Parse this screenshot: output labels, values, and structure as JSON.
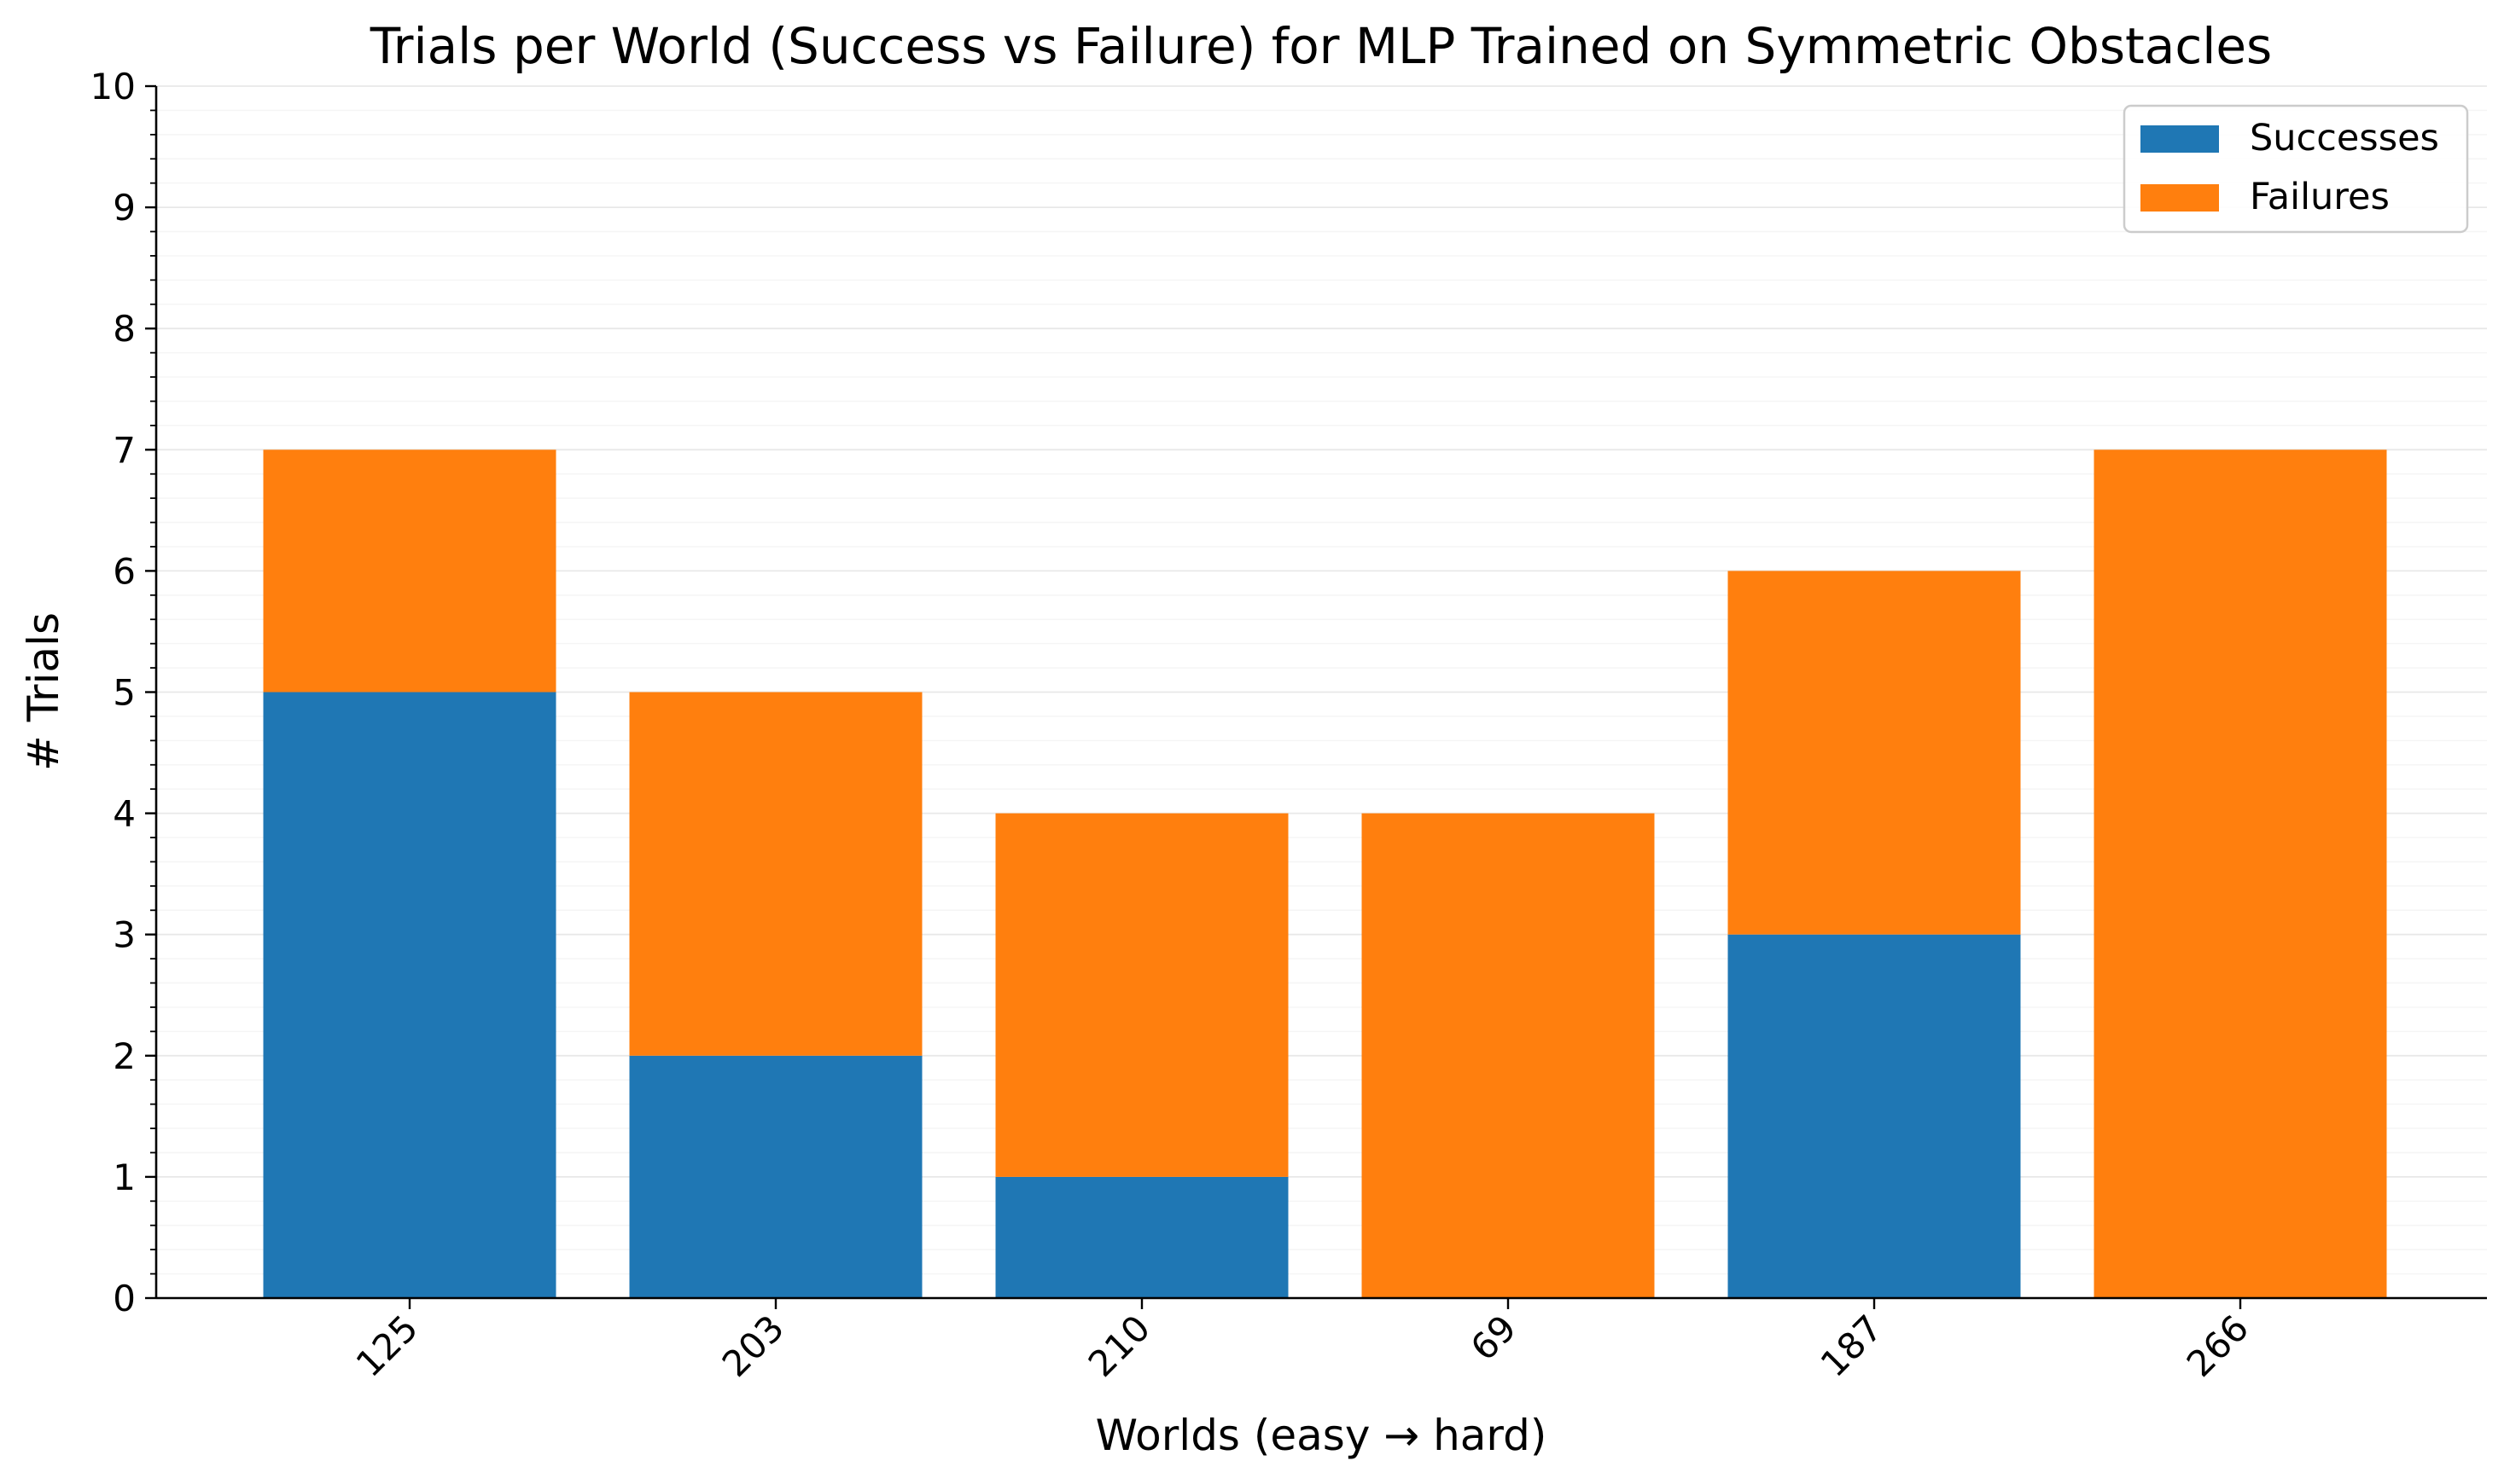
{
  "chart_data": {
    "type": "bar",
    "stacked": true,
    "title": "Trials per World (Success vs Failure) for MLP Trained on Symmetric Obstacles",
    "xlabel": "Worlds (easy → hard)",
    "ylabel": "# Trials",
    "categories": [
      "125",
      "203",
      "210",
      "69",
      "187",
      "266"
    ],
    "series": [
      {
        "name": "Successes",
        "values": [
          5,
          2,
          1,
          0,
          3,
          0
        ],
        "color": "#1f77b4"
      },
      {
        "name": "Failures",
        "values": [
          2,
          3,
          3,
          4,
          3,
          7
        ],
        "color": "#ff7f0e"
      }
    ],
    "ylim": [
      0,
      10
    ],
    "yticks": [
      "0",
      "1",
      "2",
      "3",
      "4",
      "5",
      "6",
      "7",
      "8",
      "9",
      "10"
    ],
    "grid": true,
    "minor_grid": true,
    "legend_position": "top-right"
  }
}
